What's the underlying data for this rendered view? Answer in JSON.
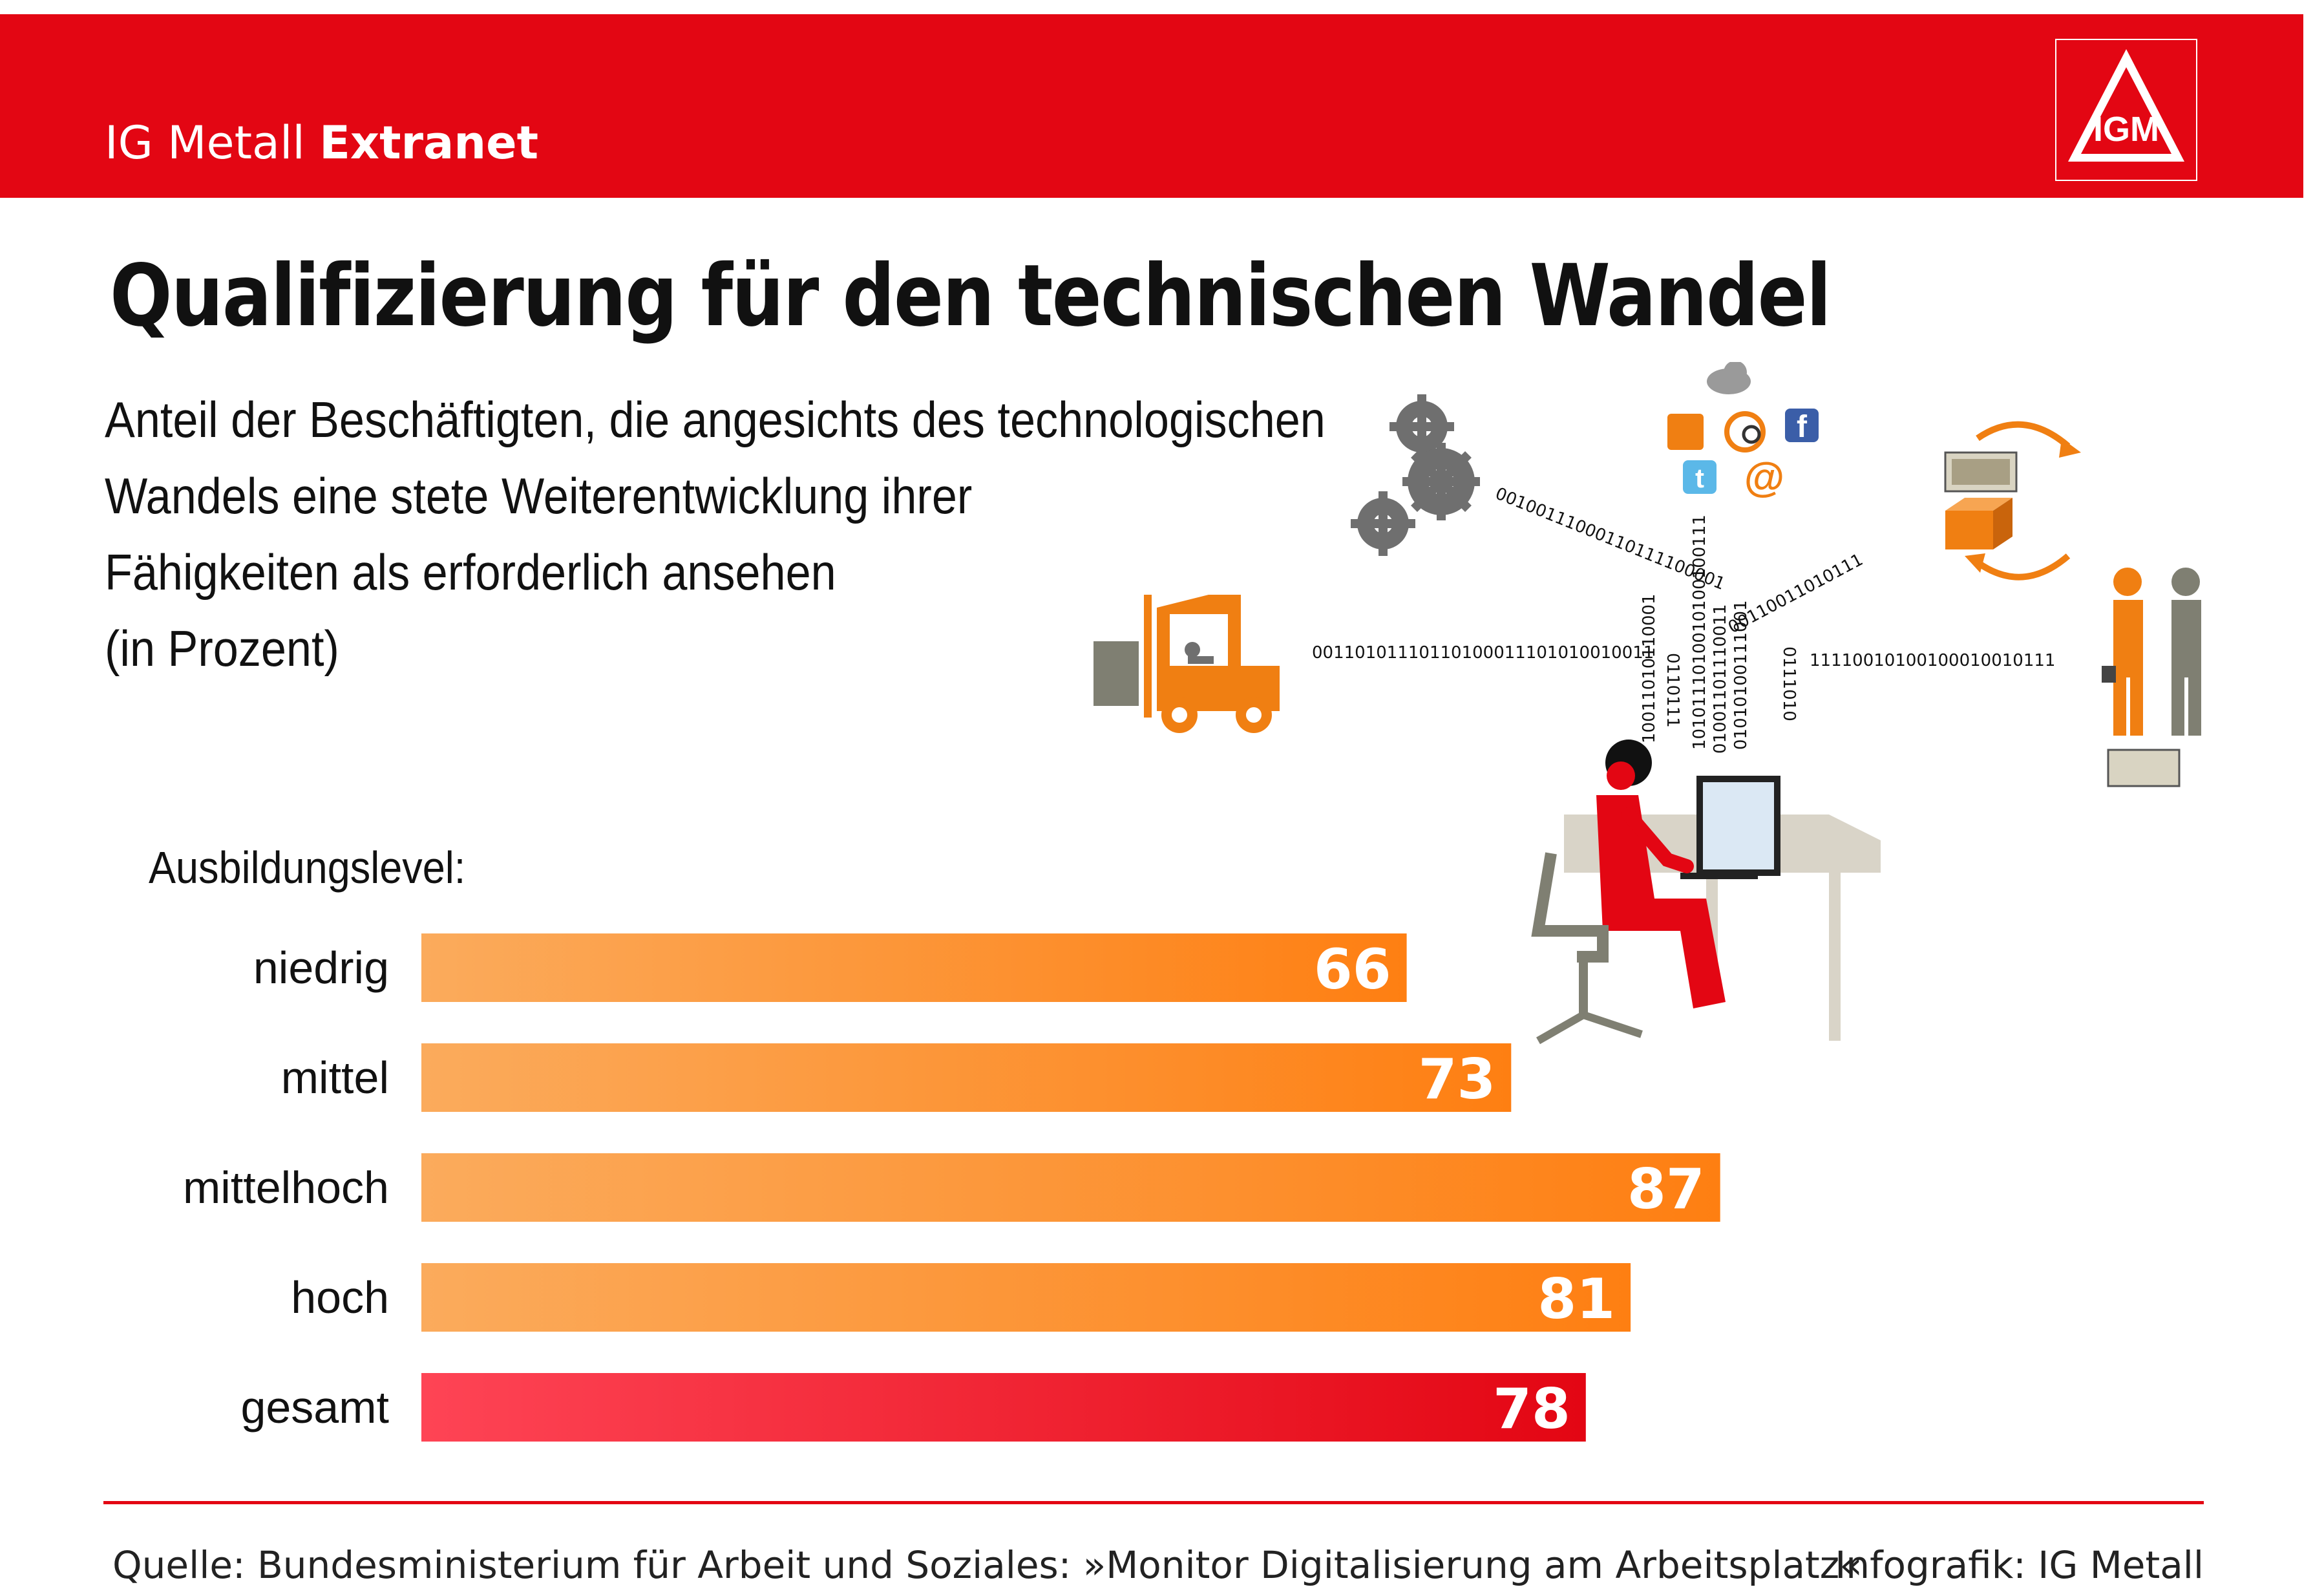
{
  "header": {
    "brand_regular": "IG Metall ",
    "brand_bold": "Extranet",
    "logo_text": "IGM",
    "accent_color": "#e30613"
  },
  "title": "Qualifizierung für den technischen Wandel",
  "subtitle_lines": [
    "Anteil der Beschäftigten, die angesichts des technologischen",
    "Wandels eine stete Weiterentwicklung ihrer",
    "Fähigkeiten als erforderlich ansehen",
    "(in Prozent)"
  ],
  "illustration": {
    "binary_strings": [
      "00100111000110111100001",
      "00110101110110100011101010010011",
      "0110111",
      "10011010110001",
      "00110011010111",
      "1010111010010100100111",
      "11110010100100010010111",
      "01001101110011",
      "0111010",
      "01010100111001"
    ],
    "icons": [
      "gear-icon",
      "forklift-icon",
      "cloud-icon",
      "calendar-icon",
      "web-search-icon",
      "facebook-icon",
      "twitter-icon",
      "email-icon",
      "money-icon",
      "package-icon",
      "worker-icon",
      "woman-at-computer-icon"
    ],
    "worker_colors": {
      "orange": "#f07f12",
      "red": "#e30613",
      "gray": "#7f7f72"
    }
  },
  "chart_data": {
    "type": "bar",
    "orientation": "horizontal",
    "axis_title": "Ausbildungslevel:",
    "categories": [
      "niedrig",
      "mittel",
      "mittelhoch",
      "hoch",
      "gesamt"
    ],
    "values": [
      66,
      73,
      87,
      81,
      78
    ],
    "data_labels": [
      "66",
      "73",
      "87",
      "81",
      "78"
    ],
    "unit": "Prozent",
    "xlim": [
      0,
      100
    ],
    "grid": false,
    "colors": {
      "bar_start": "#fbab5c",
      "bar_end": "#fe7f12",
      "total_start": "#fe4455",
      "total_end": "#e30613"
    }
  },
  "footer": {
    "source": "Quelle: Bundesministerium für Arbeit und Soziales: »Monitor Digitalisierung am Arbeitsplatz«",
    "credit": "Infografik: IG Metall"
  }
}
